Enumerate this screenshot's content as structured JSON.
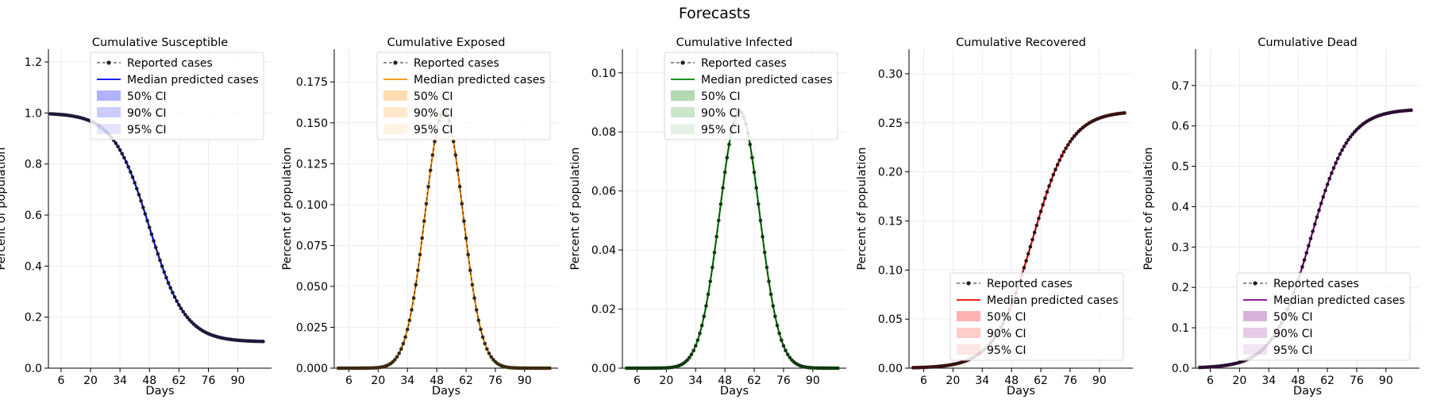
{
  "figure": {
    "title": "Forecasts"
  },
  "legend_labels": {
    "reported": "Reported cases",
    "median": "Median predicted cases",
    "ci50": "50% CI",
    "ci90": "90% CI",
    "ci95": "95% CI"
  },
  "chart_data": [
    {
      "type": "line",
      "title": "Cumulative Susceptible",
      "xlabel": "Days",
      "ylabel": "Percent of population",
      "xlim": [
        0,
        106
      ],
      "ylim": [
        0,
        1.25
      ],
      "xticks": [
        6,
        20,
        34,
        48,
        62,
        76,
        90
      ],
      "yticks": [
        0.0,
        0.2,
        0.4,
        0.6,
        0.8,
        1.0,
        1.2
      ],
      "ytick_decimals": 1,
      "grid": true,
      "legend": "top-center",
      "color": "#0000ff",
      "marker_color": "#1a1a3a",
      "curve": {
        "shape": "decreasing-sigmoid",
        "start_day": 1,
        "end_day": 102,
        "start": 1.0,
        "end": 0.103,
        "midpoint_day": 48,
        "width": 8.5
      },
      "series": [
        {
          "name": "Reported cases",
          "style": "dashed-dot-markers"
        },
        {
          "name": "Median predicted cases",
          "style": "line"
        },
        {
          "name": "50% CI",
          "style": "band"
        },
        {
          "name": "90% CI",
          "style": "band"
        },
        {
          "name": "95% CI",
          "style": "band"
        }
      ]
    },
    {
      "type": "line",
      "title": "Cumulative Exposed",
      "xlabel": "Days",
      "ylabel": "Percent of population",
      "xlim": [
        -1,
        106
      ],
      "ylim": [
        0,
        0.195
      ],
      "xticks": [
        6,
        20,
        34,
        48,
        62,
        76,
        90
      ],
      "yticks": [
        0.0,
        0.025,
        0.05,
        0.075,
        0.1,
        0.125,
        0.15,
        0.175
      ],
      "ytick_decimals": 3,
      "grid": true,
      "legend": "top-center",
      "color": "#ff8c00",
      "marker_color": "#3a2a10",
      "curve": {
        "shape": "bell",
        "start_day": 1,
        "end_day": 102,
        "peak": 0.157,
        "peak_day": 51.5,
        "base": 0.0,
        "width": 9.0
      },
      "series": [
        {
          "name": "Reported cases",
          "style": "dashed-dot-markers"
        },
        {
          "name": "Median predicted cases",
          "style": "line"
        },
        {
          "name": "50% CI",
          "style": "band"
        },
        {
          "name": "90% CI",
          "style": "band"
        },
        {
          "name": "95% CI",
          "style": "band"
        }
      ]
    },
    {
      "type": "line",
      "title": "Cumulative Infected",
      "xlabel": "Days",
      "ylabel": "Percent of population",
      "xlim": [
        -1,
        106
      ],
      "ylim": [
        0,
        0.108
      ],
      "xticks": [
        6,
        20,
        34,
        48,
        62,
        76,
        90
      ],
      "yticks": [
        0.0,
        0.02,
        0.04,
        0.06,
        0.08,
        0.1
      ],
      "ytick_decimals": 2,
      "grid": true,
      "legend": "top-center",
      "color": "#008000",
      "marker_color": "#103a10",
      "curve": {
        "shape": "bell",
        "start_day": 1,
        "end_day": 102,
        "peak": 0.087,
        "peak_day": 55,
        "base": 0.0,
        "width": 9.5
      },
      "series": [
        {
          "name": "Reported cases",
          "style": "dashed-dot-markers"
        },
        {
          "name": "Median predicted cases",
          "style": "line"
        },
        {
          "name": "50% CI",
          "style": "band"
        },
        {
          "name": "90% CI",
          "style": "band"
        },
        {
          "name": "95% CI",
          "style": "band"
        }
      ]
    },
    {
      "type": "line",
      "title": "Cumulative Recovered",
      "xlabel": "Days",
      "ylabel": "Percent of population",
      "xlim": [
        -1,
        106
      ],
      "ylim": [
        0,
        0.325
      ],
      "xticks": [
        6,
        20,
        34,
        48,
        62,
        76,
        90
      ],
      "yticks": [
        0.0,
        0.05,
        0.1,
        0.15,
        0.2,
        0.25,
        0.3
      ],
      "ytick_decimals": 2,
      "grid": true,
      "legend": "bottom-right",
      "color": "#ff0000",
      "marker_color": "#3a1010",
      "curve": {
        "shape": "increasing-sigmoid",
        "start_day": 1,
        "end_day": 102,
        "start": 0.0,
        "end": 0.262,
        "midpoint_day": 58,
        "width": 9.0
      },
      "series": [
        {
          "name": "Reported cases",
          "style": "dashed-dot-markers"
        },
        {
          "name": "Median predicted cases",
          "style": "line"
        },
        {
          "name": "50% CI",
          "style": "band"
        },
        {
          "name": "90% CI",
          "style": "band"
        },
        {
          "name": "95% CI",
          "style": "band"
        }
      ]
    },
    {
      "type": "line",
      "title": "Cumulative Dead",
      "xlabel": "Days",
      "ylabel": "Percent of population",
      "xlim": [
        -1,
        106
      ],
      "ylim": [
        0,
        0.79
      ],
      "xticks": [
        6,
        20,
        34,
        48,
        62,
        76,
        90
      ],
      "yticks": [
        0.0,
        0.1,
        0.2,
        0.3,
        0.4,
        0.5,
        0.6,
        0.7
      ],
      "ytick_decimals": 1,
      "grid": true,
      "legend": "bottom-right",
      "color": "#800080",
      "marker_color": "#2a1030",
      "curve": {
        "shape": "increasing-sigmoid",
        "start_day": 1,
        "end_day": 102,
        "start": 0.0,
        "end": 0.642,
        "midpoint_day": 54,
        "width": 9.0
      },
      "series": [
        {
          "name": "Reported cases",
          "style": "dashed-dot-markers"
        },
        {
          "name": "Median predicted cases",
          "style": "line"
        },
        {
          "name": "50% CI",
          "style": "band"
        },
        {
          "name": "90% CI",
          "style": "band"
        },
        {
          "name": "95% CI",
          "style": "band"
        }
      ]
    }
  ]
}
